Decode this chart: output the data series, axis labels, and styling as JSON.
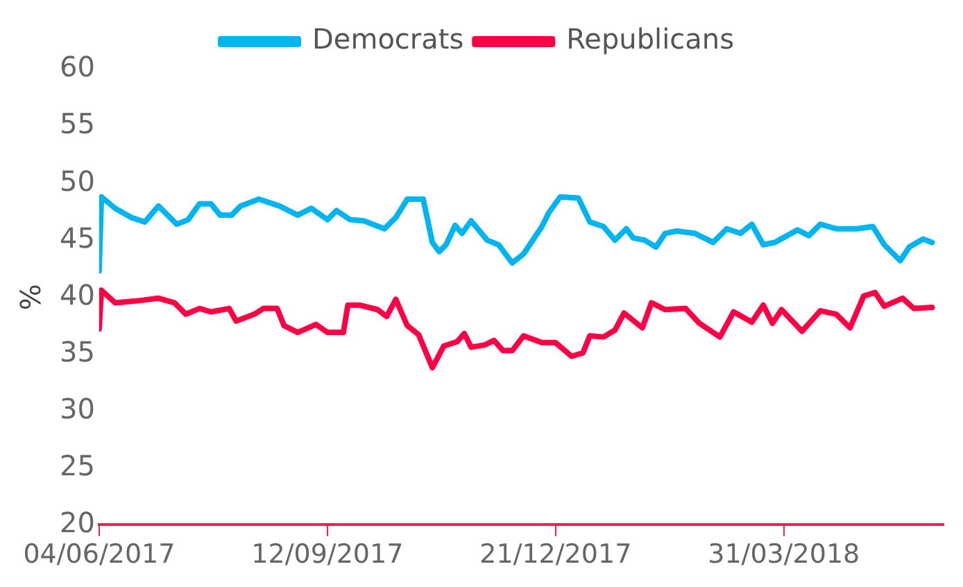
{
  "chart_data": {
    "type": "line",
    "ylabel": "%",
    "xlim": [
      "2017-06-04",
      "2018-06-09"
    ],
    "xticks": [
      {
        "value": "2017-06-04",
        "label": "04/06/2017"
      },
      {
        "value": "2017-09-12",
        "label": "12/09/2017"
      },
      {
        "value": "2017-12-21",
        "label": "21/12/2017"
      },
      {
        "value": "2018-03-31",
        "label": "31/03/2018"
      }
    ],
    "ylim": [
      20,
      60
    ],
    "yticks": [
      20,
      25,
      30,
      35,
      40,
      45,
      50,
      55,
      60
    ],
    "grid": false,
    "legend": "top",
    "marker": "none",
    "line_style": "solid",
    "series": [
      {
        "name": "Democrats",
        "color": "#00b4f0",
        "x": [
          "2017-06-04",
          "2017-06-05",
          "2017-06-11",
          "2017-06-18",
          "2017-06-24",
          "2017-06-30",
          "2017-07-08",
          "2017-07-13",
          "2017-07-18",
          "2017-07-23",
          "2017-07-27",
          "2017-08-01",
          "2017-08-05",
          "2017-08-13",
          "2017-08-22",
          "2017-08-30",
          "2017-09-05",
          "2017-09-12",
          "2017-09-16",
          "2017-09-22",
          "2017-09-28",
          "2017-10-07",
          "2017-10-12",
          "2017-10-17",
          "2017-10-24",
          "2017-10-28",
          "2017-10-31",
          "2017-11-03",
          "2017-11-07",
          "2017-11-10",
          "2017-11-14",
          "2017-11-21",
          "2017-11-26",
          "2017-12-02",
          "2017-12-07",
          "2017-12-15",
          "2017-12-18",
          "2017-12-23",
          "2017-12-31",
          "2018-01-05",
          "2018-01-11",
          "2018-01-16",
          "2018-01-21",
          "2018-01-24",
          "2018-01-29",
          "2018-02-03",
          "2018-02-07",
          "2018-02-12",
          "2018-02-20",
          "2018-02-28",
          "2018-03-06",
          "2018-03-12",
          "2018-03-17",
          "2018-03-22",
          "2018-03-27",
          "2018-04-06",
          "2018-04-11",
          "2018-04-16",
          "2018-04-23",
          "2018-05-02",
          "2018-05-09",
          "2018-05-14",
          "2018-05-21",
          "2018-05-25",
          "2018-05-31",
          "2018-06-04"
        ],
        "values": [
          42.3,
          48.8,
          47.8,
          47.0,
          46.6,
          48.0,
          46.4,
          46.8,
          48.2,
          48.2,
          47.2,
          47.2,
          48.0,
          48.6,
          48.0,
          47.2,
          47.8,
          46.8,
          47.6,
          46.8,
          46.7,
          46.0,
          47.0,
          48.6,
          48.6,
          44.8,
          44.0,
          44.6,
          46.3,
          45.6,
          46.7,
          45.0,
          44.6,
          43.0,
          43.8,
          46.2,
          47.4,
          48.8,
          48.7,
          46.6,
          46.2,
          45.0,
          46.0,
          45.2,
          45.0,
          44.4,
          45.6,
          45.8,
          45.6,
          44.8,
          46.0,
          45.6,
          46.4,
          44.6,
          44.8,
          45.9,
          45.4,
          46.4,
          46.0,
          46.0,
          46.2,
          44.6,
          43.2,
          44.4,
          45.1,
          44.8
        ]
      },
      {
        "name": "Republicans",
        "color": "#ff0044",
        "x": [
          "2017-06-04",
          "2017-06-05",
          "2017-06-11",
          "2017-06-22",
          "2017-06-30",
          "2017-07-07",
          "2017-07-12",
          "2017-07-18",
          "2017-07-23",
          "2017-07-31",
          "2017-08-03",
          "2017-08-11",
          "2017-08-15",
          "2017-08-21",
          "2017-08-24",
          "2017-08-30",
          "2017-09-07",
          "2017-09-12",
          "2017-09-19",
          "2017-09-21",
          "2017-09-26",
          "2017-10-04",
          "2017-10-08",
          "2017-10-12",
          "2017-10-17",
          "2017-10-22",
          "2017-10-28",
          "2017-11-02",
          "2017-11-08",
          "2017-11-11",
          "2017-11-14",
          "2017-11-20",
          "2017-11-24",
          "2017-11-28",
          "2017-12-02",
          "2017-12-07",
          "2017-12-15",
          "2017-12-21",
          "2017-12-28",
          "2018-01-02",
          "2018-01-05",
          "2018-01-11",
          "2018-01-16",
          "2018-01-20",
          "2018-01-28",
          "2018-02-01",
          "2018-02-07",
          "2018-02-16",
          "2018-02-22",
          "2018-03-03",
          "2018-03-09",
          "2018-03-17",
          "2018-03-22",
          "2018-03-26",
          "2018-03-30",
          "2018-04-08",
          "2018-04-16",
          "2018-04-23",
          "2018-04-29",
          "2018-05-05",
          "2018-05-10",
          "2018-05-14",
          "2018-05-22",
          "2018-05-27",
          "2018-06-04"
        ],
        "values": [
          37.2,
          40.6,
          39.5,
          39.7,
          39.9,
          39.5,
          38.5,
          39.0,
          38.7,
          39.0,
          37.9,
          38.5,
          39.0,
          39.0,
          37.5,
          36.9,
          37.6,
          36.9,
          36.9,
          39.3,
          39.3,
          38.9,
          38.3,
          39.8,
          37.5,
          36.7,
          33.8,
          35.7,
          36.1,
          36.8,
          35.6,
          35.8,
          36.2,
          35.3,
          35.3,
          36.6,
          36.0,
          36.0,
          34.8,
          35.1,
          36.6,
          36.5,
          37.1,
          38.6,
          37.3,
          39.5,
          38.9,
          39.0,
          37.7,
          36.5,
          38.7,
          37.8,
          39.3,
          37.7,
          38.9,
          37.0,
          38.8,
          38.5,
          37.3,
          40.1,
          40.4,
          39.2,
          39.9,
          39.0,
          39.1
        ]
      }
    ]
  }
}
